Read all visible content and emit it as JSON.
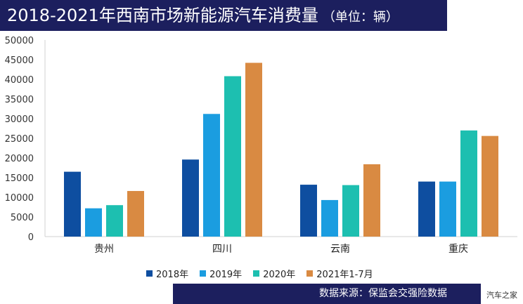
{
  "header": {
    "title": "2018-2021年西南市场新能源汽车消费量",
    "unit": "（单位：辆）"
  },
  "footer": {
    "source": "数据来源：保监会交强险数据",
    "watermark": "汽车之家"
  },
  "colors": {
    "navy": "#1c1f5e",
    "series": [
      "#0e4ea0",
      "#1b9de0",
      "#1dbfb0",
      "#d98a42"
    ]
  },
  "chart_data": {
    "type": "bar",
    "categories": [
      "贵州",
      "四川",
      "云南",
      "重庆"
    ],
    "series": [
      {
        "name": "2018年",
        "values": [
          16500,
          19600,
          13200,
          14000
        ]
      },
      {
        "name": "2019年",
        "values": [
          7200,
          31200,
          9300,
          14000
        ]
      },
      {
        "name": "2020年",
        "values": [
          8000,
          40800,
          13100,
          27000
        ]
      },
      {
        "name": "2021年1-7月",
        "values": [
          11600,
          44200,
          18400,
          25600
        ]
      }
    ],
    "yticks": [
      "0",
      "5000",
      "10000",
      "15000",
      "20000",
      "25000",
      "30000",
      "35000",
      "40000",
      "45000",
      "50000"
    ],
    "ylim": [
      0,
      50000
    ],
    "title": "2018-2021年西南市场新能源汽车消费量",
    "xlabel": "",
    "ylabel": "",
    "grid": false,
    "legend": "bottom"
  }
}
